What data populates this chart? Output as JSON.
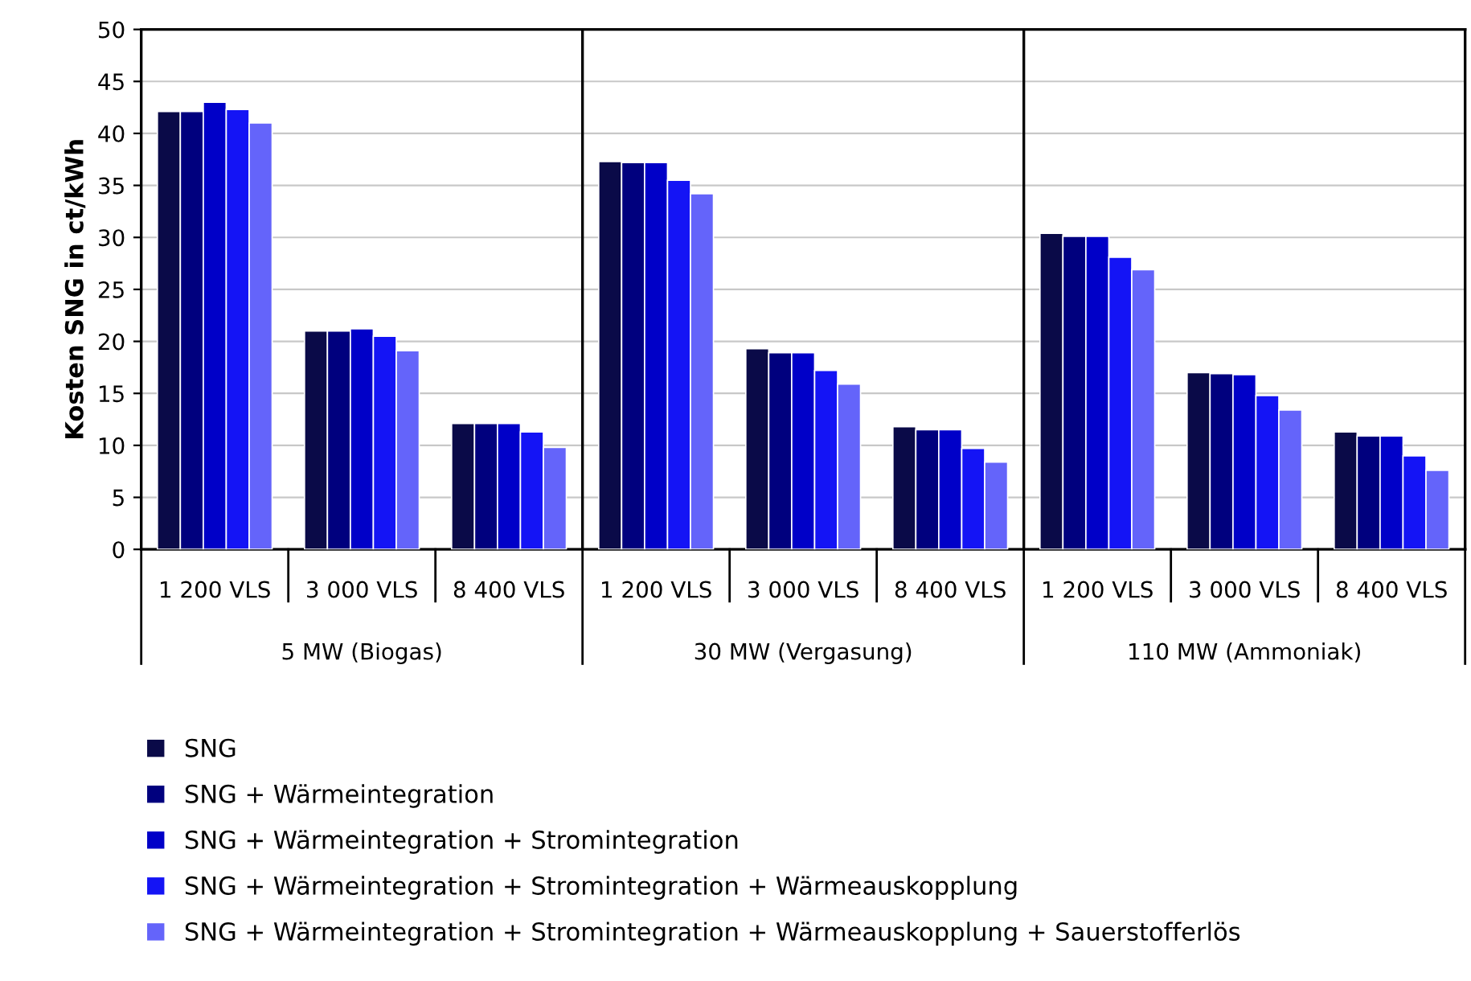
{
  "chart_data": {
    "type": "bar",
    "ylabel": "Kosten SNG in ct/kWh",
    "categories": [
      "1 200 VLS",
      "3 000 VLS",
      "8 400 VLS",
      "1 200 VLS",
      "3 000 VLS",
      "8 400 VLS",
      "1 200 VLS",
      "3 000 VLS",
      "8 400 VLS"
    ],
    "series": [
      {
        "name": "SNG",
        "color": "#0a0a48",
        "values": [
          42.1,
          21.0,
          12.1,
          37.3,
          19.3,
          11.8,
          30.4,
          17.0,
          11.3
        ]
      },
      {
        "name": "SNG + Wärmeintegration",
        "color": "#00007e",
        "values": [
          42.1,
          21.0,
          12.1,
          37.2,
          18.9,
          11.5,
          30.1,
          16.9,
          10.9
        ]
      },
      {
        "name": "SNG + Wärmeintegration + Stromintegration",
        "color": "#0000c8",
        "values": [
          43.0,
          21.2,
          12.1,
          37.2,
          18.9,
          11.5,
          30.1,
          16.8,
          10.9
        ]
      },
      {
        "name": "SNG + Wärmeintegration + Stromintegration + Wärmeauskopplung",
        "color": "#1414f5",
        "values": [
          42.3,
          20.5,
          11.3,
          35.5,
          17.2,
          9.7,
          28.1,
          14.8,
          9.0
        ]
      },
      {
        "name": "SNG + Wärmeintegration + Stromintegration + Wärmeauskopplung + Sauerstofferlös",
        "color": "#6464fa",
        "values": [
          41.0,
          19.1,
          9.8,
          34.2,
          15.9,
          8.4,
          26.9,
          13.4,
          7.6
        ]
      }
    ],
    "annotations": [
      "5 MW (Biogas)",
      "30 MW (Vergasung)",
      "110 MW (Ammoniak)"
    ],
    "ylim": [
      0,
      50
    ],
    "yticks": [
      0,
      5,
      10,
      15,
      20,
      25,
      30,
      35,
      40,
      45,
      50
    ],
    "grid": "y",
    "legend": "bottom"
  }
}
